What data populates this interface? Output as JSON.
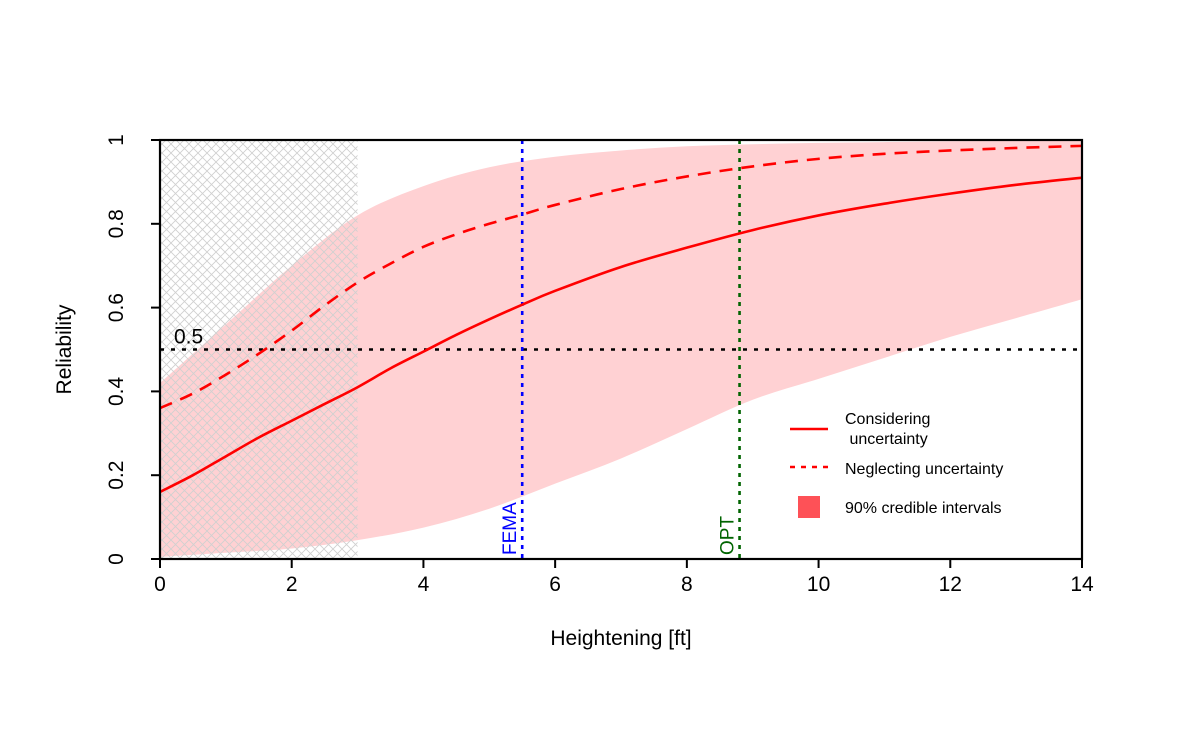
{
  "chart_data": {
    "type": "line",
    "xlabel": "Heightening [ft]",
    "ylabel": "Reliability",
    "xlim": [
      0,
      14
    ],
    "ylim": [
      0,
      1
    ],
    "xticks": [
      "0",
      "2",
      "4",
      "6",
      "8",
      "10",
      "12",
      "14"
    ],
    "yticks": [
      "0",
      "0.2",
      "0.4",
      "0.6",
      "0.8",
      "1"
    ],
    "grid": false,
    "legend_position": "bottom-right",
    "series": [
      {
        "name": "Considering\n uncertainty",
        "style": "solid",
        "color": "#ff0000",
        "x": [
          0,
          0.5,
          1,
          1.5,
          2,
          2.5,
          3,
          3.5,
          4,
          4.5,
          5,
          5.5,
          6,
          7,
          8,
          9,
          10,
          11,
          12,
          13,
          14
        ],
        "y": [
          0.16,
          0.2,
          0.245,
          0.29,
          0.33,
          0.37,
          0.41,
          0.455,
          0.495,
          0.535,
          0.572,
          0.607,
          0.64,
          0.697,
          0.743,
          0.785,
          0.82,
          0.848,
          0.872,
          0.893,
          0.91
        ]
      },
      {
        "name": "Neglecting uncertainty",
        "style": "dashed",
        "color": "#ff0000",
        "x": [
          0,
          0.5,
          1,
          1.5,
          2,
          2.5,
          3,
          3.5,
          4,
          4.5,
          5,
          5.5,
          6,
          7,
          8,
          9,
          10,
          11,
          12,
          13,
          14
        ],
        "y": [
          0.36,
          0.395,
          0.44,
          0.49,
          0.545,
          0.605,
          0.66,
          0.705,
          0.745,
          0.775,
          0.8,
          0.822,
          0.845,
          0.883,
          0.913,
          0.937,
          0.955,
          0.967,
          0.975,
          0.981,
          0.986
        ]
      }
    ],
    "band": {
      "name": "90% credible intervals",
      "color": "#fe5157",
      "fill_color": "#ffd1d3",
      "x": [
        0,
        1,
        2,
        3,
        4,
        5,
        6,
        7,
        8,
        9,
        10,
        11,
        12,
        13,
        14
      ],
      "lower": [
        0.005,
        0.015,
        0.025,
        0.045,
        0.075,
        0.12,
        0.18,
        0.24,
        0.31,
        0.38,
        0.43,
        0.48,
        0.53,
        0.575,
        0.62
      ],
      "upper": [
        0.42,
        0.56,
        0.7,
        0.82,
        0.89,
        0.935,
        0.96,
        0.975,
        0.985,
        0.99,
        0.993,
        0.995,
        0.997,
        0.998,
        0.999
      ]
    },
    "hatched_region": {
      "x_from": 0,
      "x_to": 3
    },
    "hline": {
      "y": 0.5,
      "label": "0.5",
      "color": "#000000"
    },
    "vlines": [
      {
        "x": 5.5,
        "label": "FEMA",
        "color": "#0000ff"
      },
      {
        "x": 8.8,
        "label": "OPT",
        "color": "#006400"
      }
    ]
  }
}
